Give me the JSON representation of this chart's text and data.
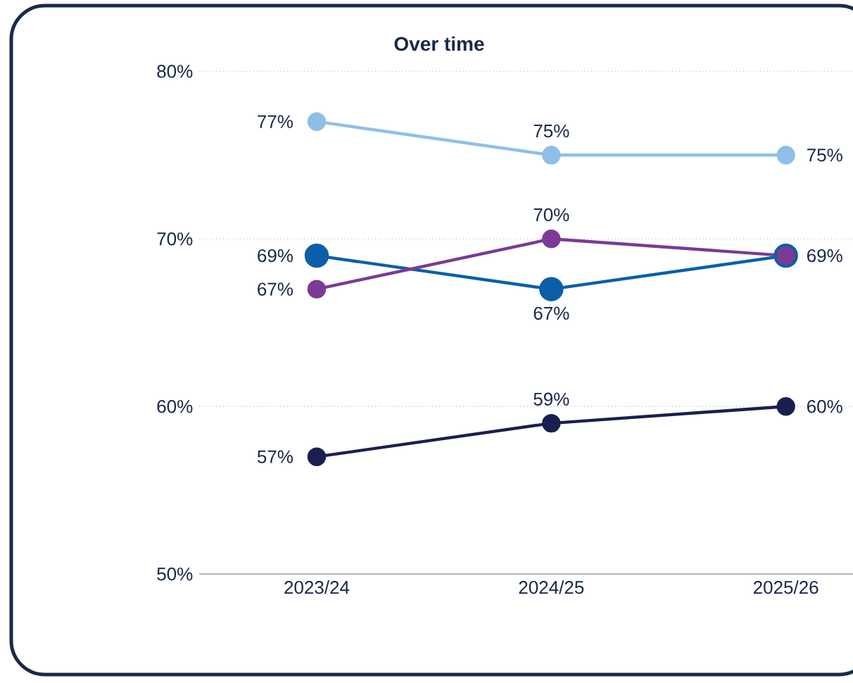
{
  "chart_data": {
    "type": "line",
    "title": "Over time",
    "categories": [
      "2023/24",
      "2024/25",
      "2025/26"
    ],
    "ylim": [
      50,
      80
    ],
    "yticks": [
      {
        "value": 50,
        "label": "50%"
      },
      {
        "value": 60,
        "label": "60%"
      },
      {
        "value": 70,
        "label": "70%"
      },
      {
        "value": 80,
        "label": "80%"
      }
    ],
    "grid": "y",
    "marker": "circle",
    "line_style": "solid",
    "series": [
      {
        "color": "#8fbfe8",
        "values": [
          77,
          75,
          75
        ],
        "value_labels": [
          "77%",
          "75%",
          "75%"
        ]
      },
      {
        "color": "#0a5fa8",
        "values": [
          69,
          67,
          69
        ],
        "value_labels": [
          "69%",
          "67%",
          null
        ]
      },
      {
        "color": "#7b3a96",
        "values": [
          67,
          70,
          69
        ],
        "value_labels": [
          "67%",
          "70%",
          "69%"
        ]
      },
      {
        "color": "#1b1f4f",
        "values": [
          57,
          59,
          60
        ],
        "value_labels": [
          "57%",
          "59%",
          "60%"
        ]
      }
    ]
  }
}
